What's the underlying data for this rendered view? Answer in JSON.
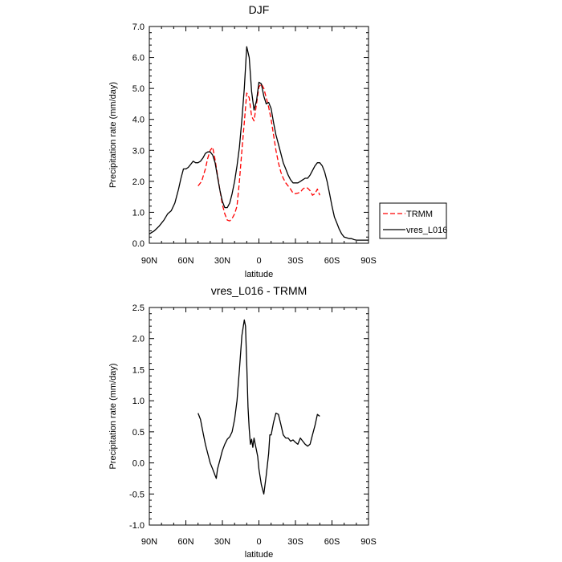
{
  "chart_data": [
    {
      "type": "line",
      "title": "DJF",
      "xlabel": "latitude",
      "ylabel": "Precipitation rate (mm/day)",
      "xlim": [
        90,
        -90
      ],
      "ylim": [
        0,
        7
      ],
      "xticks": [
        90,
        60,
        30,
        0,
        -30,
        -60,
        -90
      ],
      "xtick_labels": [
        "90N",
        "60N",
        "30N",
        "0",
        "30S",
        "60S",
        "90S"
      ],
      "yticks": [
        0,
        1,
        2,
        3,
        4,
        5,
        6,
        7
      ],
      "ytick_labels": [
        "0.0",
        "1.0",
        "2.0",
        "3.0",
        "4.0",
        "5.0",
        "6.0",
        "7.0"
      ],
      "legend": {
        "position": "right",
        "entries": [
          "TRMM",
          "vres_L016"
        ]
      },
      "series": [
        {
          "name": "TRMM",
          "color": "#ff0000",
          "dash": "dashed",
          "x": [
            50,
            47,
            44,
            42,
            40,
            38,
            36,
            34,
            32,
            30,
            28,
            26,
            24,
            22,
            20,
            18,
            16,
            14,
            12,
            10,
            8,
            6,
            4,
            2,
            0,
            -2,
            -4,
            -6,
            -8,
            -10,
            -12,
            -14,
            -16,
            -18,
            -20,
            -22,
            -24,
            -26,
            -28,
            -30,
            -32,
            -34,
            -36,
            -38,
            -40,
            -42,
            -44,
            -46,
            -48,
            -50
          ],
          "y": [
            1.85,
            2.0,
            2.4,
            2.75,
            3.0,
            3.1,
            2.7,
            2.2,
            1.7,
            1.25,
            0.95,
            0.75,
            0.72,
            0.8,
            0.95,
            1.2,
            2.0,
            3.0,
            3.9,
            4.85,
            4.7,
            4.1,
            3.95,
            4.5,
            5.05,
            5.15,
            5.0,
            4.7,
            4.4,
            4.0,
            3.5,
            3.0,
            2.6,
            2.3,
            2.1,
            1.95,
            1.85,
            1.75,
            1.62,
            1.6,
            1.62,
            1.65,
            1.75,
            1.8,
            1.78,
            1.7,
            1.55,
            1.6,
            1.75,
            1.55
          ]
        },
        {
          "name": "vres_L016",
          "color": "#000000",
          "dash": "solid",
          "x": [
            90,
            86,
            82,
            78,
            75,
            72,
            69,
            66,
            64,
            62,
            60,
            58,
            56,
            54,
            52,
            50,
            48,
            46,
            44,
            42,
            40,
            38,
            36,
            34,
            32,
            30,
            28,
            26,
            24,
            22,
            20,
            18,
            16,
            14,
            12,
            10,
            8,
            6,
            4,
            2,
            0,
            -2,
            -4,
            -6,
            -8,
            -10,
            -12,
            -14,
            -16,
            -18,
            -20,
            -22,
            -24,
            -26,
            -28,
            -30,
            -32,
            -34,
            -36,
            -38,
            -40,
            -42,
            -44,
            -46,
            -48,
            -50,
            -52,
            -54,
            -56,
            -58,
            -60,
            -62,
            -64,
            -66,
            -68,
            -70,
            -72,
            -74,
            -76,
            -78,
            -80,
            -84,
            -88,
            -90
          ],
          "y": [
            0.3,
            0.4,
            0.55,
            0.75,
            0.95,
            1.05,
            1.3,
            1.75,
            2.1,
            2.4,
            2.4,
            2.45,
            2.55,
            2.65,
            2.6,
            2.6,
            2.65,
            2.75,
            2.9,
            2.95,
            2.95,
            2.85,
            2.6,
            2.15,
            1.7,
            1.35,
            1.15,
            1.15,
            1.3,
            1.6,
            2.0,
            2.5,
            3.1,
            4.0,
            5.0,
            6.35,
            6.0,
            4.9,
            4.3,
            4.6,
            5.2,
            5.15,
            4.75,
            4.5,
            4.55,
            4.35,
            3.9,
            3.5,
            3.2,
            2.9,
            2.6,
            2.4,
            2.2,
            2.05,
            1.95,
            1.95,
            1.95,
            2.0,
            2.05,
            2.1,
            2.1,
            2.2,
            2.35,
            2.5,
            2.6,
            2.6,
            2.5,
            2.3,
            2.0,
            1.6,
            1.2,
            0.85,
            0.65,
            0.45,
            0.3,
            0.2,
            0.18,
            0.15,
            0.15,
            0.12,
            0.1,
            0.1,
            0.1,
            0.1
          ]
        }
      ]
    },
    {
      "type": "line",
      "title": "vres_L016 - TRMM",
      "xlabel": "latitude",
      "ylabel": "Precipitation rate (mm/day)",
      "xlim": [
        90,
        -90
      ],
      "ylim": [
        -1,
        2.5
      ],
      "xticks": [
        90,
        60,
        30,
        0,
        -30,
        -60,
        -90
      ],
      "xtick_labels": [
        "90N",
        "60N",
        "30N",
        "0",
        "30S",
        "60S",
        "90S"
      ],
      "yticks": [
        -1,
        -0.5,
        0,
        0.5,
        1,
        1.5,
        2,
        2.5
      ],
      "ytick_labels": [
        "-1.0",
        "-0.5",
        "0.0",
        "0.5",
        "1.0",
        "1.5",
        "2.0",
        "2.5"
      ],
      "series": [
        {
          "name": "vres_L016 - TRMM",
          "color": "#000000",
          "dash": "solid",
          "x": [
            50,
            48,
            46,
            44,
            42,
            40,
            38,
            36,
            35,
            34,
            32,
            30,
            28,
            26,
            24,
            22,
            20,
            18,
            16,
            14,
            12,
            11,
            10,
            9,
            8,
            7,
            6,
            5,
            4,
            3,
            2,
            1,
            0,
            -2,
            -4,
            -6,
            -8,
            -9,
            -10,
            -12,
            -14,
            -16,
            -18,
            -20,
            -22,
            -24,
            -26,
            -28,
            -30,
            -32,
            -34,
            -36,
            -38,
            -40,
            -42,
            -44,
            -46,
            -48,
            -50
          ],
          "y": [
            0.8,
            0.7,
            0.5,
            0.3,
            0.15,
            0.0,
            -0.1,
            -0.2,
            -0.25,
            -0.1,
            0.05,
            0.2,
            0.3,
            0.38,
            0.42,
            0.5,
            0.7,
            1.0,
            1.5,
            2.05,
            2.3,
            2.2,
            1.6,
            0.9,
            0.55,
            0.3,
            0.38,
            0.25,
            0.4,
            0.3,
            0.2,
            0.1,
            -0.1,
            -0.35,
            -0.5,
            -0.2,
            0.15,
            0.45,
            0.45,
            0.65,
            0.8,
            0.78,
            0.62,
            0.45,
            0.4,
            0.4,
            0.35,
            0.37,
            0.33,
            0.3,
            0.4,
            0.35,
            0.3,
            0.27,
            0.3,
            0.45,
            0.6,
            0.78,
            0.75
          ]
        }
      ]
    }
  ]
}
